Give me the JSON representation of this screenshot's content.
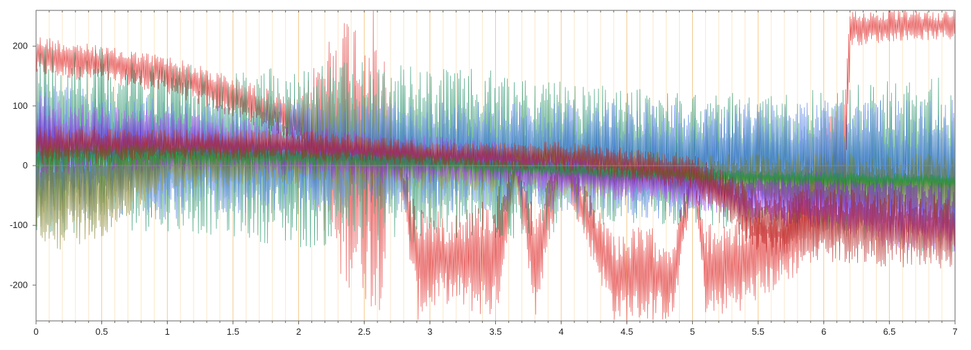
{
  "chart_data": {
    "type": "line",
    "title": "",
    "xlabel": "",
    "ylabel": "",
    "xlim": [
      0,
      7
    ],
    "ylim": [
      -260,
      260
    ],
    "x_ticks": [
      0,
      0.5,
      1,
      1.5,
      2,
      2.5,
      3,
      3.5,
      4,
      4.5,
      5,
      5.5,
      6,
      6.5,
      7
    ],
    "x_tick_labels": [
      "0",
      "0.5",
      "1",
      "1.5",
      "2",
      "2.5",
      "3",
      "3.5",
      "4",
      "4.5",
      "5",
      "5.5",
      "6",
      "6.5",
      "7"
    ],
    "y_ticks": [
      200,
      100,
      0,
      -100,
      -200
    ],
    "y_tick_labels": [
      "200",
      "100",
      "0",
      "-100",
      "-200"
    ],
    "grid": {
      "major_vertical": true,
      "minor_vertical_step": 0.1,
      "horizontal_zero_line": true,
      "major_color": "#f5c98a",
      "minor_color": "#fbe7c8"
    },
    "legend": "none",
    "background": "#ffffff",
    "series": [
      {
        "color": "#e03030",
        "envelope": [
          {
            "x": 0,
            "lo": 150,
            "hi": 220
          },
          {
            "x": 0.5,
            "lo": 140,
            "hi": 200
          },
          {
            "x": 1,
            "lo": 120,
            "hi": 185
          },
          {
            "x": 1.5,
            "lo": 80,
            "hi": 150
          },
          {
            "x": 2,
            "lo": 40,
            "hi": 110
          },
          {
            "x": 2.3,
            "lo": -200,
            "hi": 260
          },
          {
            "x": 2.45,
            "lo": -210,
            "hi": 260
          },
          {
            "x": 2.6,
            "lo": -260,
            "hi": 260
          },
          {
            "x": 2.75,
            "lo": -10,
            "hi": 40
          },
          {
            "x": 2.9,
            "lo": -260,
            "hi": -60
          },
          {
            "x": 3.1,
            "lo": -230,
            "hi": -80
          },
          {
            "x": 3.35,
            "lo": -250,
            "hi": -60
          },
          {
            "x": 3.5,
            "lo": -260,
            "hi": -40
          },
          {
            "x": 3.65,
            "lo": -30,
            "hi": 20
          },
          {
            "x": 3.8,
            "lo": -260,
            "hi": -80
          },
          {
            "x": 4.0,
            "lo": -20,
            "hi": 30
          },
          {
            "x": 4.4,
            "lo": -260,
            "hi": -110
          },
          {
            "x": 4.65,
            "lo": -260,
            "hi": -100
          },
          {
            "x": 4.85,
            "lo": -260,
            "hi": -120
          },
          {
            "x": 5.0,
            "lo": -30,
            "hi": 10
          },
          {
            "x": 5.1,
            "lo": -260,
            "hi": -100
          },
          {
            "x": 5.4,
            "lo": -240,
            "hi": -80
          },
          {
            "x": 5.7,
            "lo": -200,
            "hi": -60
          },
          {
            "x": 6.0,
            "lo": -150,
            "hi": 80
          },
          {
            "x": 6.15,
            "lo": -130,
            "hi": 100
          },
          {
            "x": 6.2,
            "lo": 200,
            "hi": 260
          },
          {
            "x": 6.6,
            "lo": 210,
            "hi": 260
          },
          {
            "x": 7,
            "lo": 210,
            "hi": 260
          }
        ]
      },
      {
        "color": "#138a5e",
        "envelope": [
          {
            "x": 0,
            "lo": -120,
            "hi": 210
          },
          {
            "x": 0.5,
            "lo": -110,
            "hi": 200
          },
          {
            "x": 1,
            "lo": -110,
            "hi": 180
          },
          {
            "x": 1.5,
            "lo": -120,
            "hi": 160
          },
          {
            "x": 2,
            "lo": -140,
            "hi": 170
          },
          {
            "x": 2.5,
            "lo": -130,
            "hi": 175
          },
          {
            "x": 3,
            "lo": -130,
            "hi": 165
          },
          {
            "x": 3.5,
            "lo": -130,
            "hi": 160
          },
          {
            "x": 4,
            "lo": -110,
            "hi": 140
          },
          {
            "x": 4.5,
            "lo": -100,
            "hi": 130
          },
          {
            "x": 5,
            "lo": -100,
            "hi": 125
          },
          {
            "x": 5.5,
            "lo": -110,
            "hi": 120
          },
          {
            "x": 6,
            "lo": -120,
            "hi": 130
          },
          {
            "x": 6.5,
            "lo": -140,
            "hi": 145
          },
          {
            "x": 7,
            "lo": -150,
            "hi": 150
          }
        ]
      },
      {
        "color": "#3a6ee0",
        "envelope": [
          {
            "x": 0,
            "lo": -100,
            "hi": 140
          },
          {
            "x": 0.5,
            "lo": -90,
            "hi": 125
          },
          {
            "x": 1,
            "lo": -90,
            "hi": 110
          },
          {
            "x": 1.5,
            "lo": -80,
            "hi": 110
          },
          {
            "x": 2,
            "lo": -80,
            "hi": 105
          },
          {
            "x": 2.5,
            "lo": -70,
            "hi": 110
          },
          {
            "x": 3,
            "lo": -80,
            "hi": 110
          },
          {
            "x": 3.5,
            "lo": -80,
            "hi": 110
          },
          {
            "x": 4,
            "lo": -80,
            "hi": 110
          },
          {
            "x": 4.5,
            "lo": -90,
            "hi": 110
          },
          {
            "x": 5,
            "lo": -90,
            "hi": 105
          },
          {
            "x": 5.5,
            "lo": -100,
            "hi": 105
          },
          {
            "x": 6,
            "lo": -110,
            "hi": 110
          },
          {
            "x": 6.5,
            "lo": -120,
            "hi": 110
          },
          {
            "x": 7,
            "lo": -130,
            "hi": 110
          }
        ]
      },
      {
        "color": "#7a7a1e",
        "envelope": [
          {
            "x": 0,
            "lo": -155,
            "hi": 60
          },
          {
            "x": 0.5,
            "lo": -120,
            "hi": 50
          },
          {
            "x": 1,
            "lo": -40,
            "hi": 60
          },
          {
            "x": 2,
            "lo": -30,
            "hi": 50
          },
          {
            "x": 3,
            "lo": -40,
            "hi": 40
          },
          {
            "x": 4,
            "lo": -50,
            "hi": 30
          },
          {
            "x": 5,
            "lo": -60,
            "hi": 20
          },
          {
            "x": 6,
            "lo": -90,
            "hi": 20
          },
          {
            "x": 7,
            "lo": -110,
            "hi": 20
          }
        ]
      },
      {
        "color": "#8a2be2",
        "envelope": [
          {
            "x": 0,
            "lo": -20,
            "hi": 120
          },
          {
            "x": 0.5,
            "lo": -10,
            "hi": 100
          },
          {
            "x": 1,
            "lo": -10,
            "hi": 90
          },
          {
            "x": 1.5,
            "lo": -10,
            "hi": 80
          },
          {
            "x": 2,
            "lo": -20,
            "hi": 70
          },
          {
            "x": 2.5,
            "lo": -30,
            "hi": 60
          },
          {
            "x": 3,
            "lo": -30,
            "hi": 50
          },
          {
            "x": 3.5,
            "lo": -30,
            "hi": 40
          },
          {
            "x": 4,
            "lo": -50,
            "hi": 20
          },
          {
            "x": 4.5,
            "lo": -60,
            "hi": 10
          },
          {
            "x": 5,
            "lo": -70,
            "hi": 0
          },
          {
            "x": 5.5,
            "lo": -100,
            "hi": -10
          },
          {
            "x": 6,
            "lo": -110,
            "hi": -10
          },
          {
            "x": 6.5,
            "lo": -140,
            "hi": -20
          },
          {
            "x": 7,
            "lo": -150,
            "hi": -30
          }
        ]
      },
      {
        "color": "#1a9a2a",
        "envelope": [
          {
            "x": 0,
            "lo": -10,
            "hi": 40
          },
          {
            "x": 1,
            "lo": 0,
            "hi": 35
          },
          {
            "x": 2,
            "lo": 0,
            "hi": 30
          },
          {
            "x": 3,
            "lo": -10,
            "hi": 20
          },
          {
            "x": 4,
            "lo": -20,
            "hi": 5
          },
          {
            "x": 5,
            "lo": -30,
            "hi": -5
          },
          {
            "x": 6,
            "lo": -35,
            "hi": -10
          },
          {
            "x": 7,
            "lo": -40,
            "hi": -15
          }
        ]
      },
      {
        "color": "#b22222",
        "envelope": [
          {
            "x": 0,
            "lo": 0,
            "hi": 70
          },
          {
            "x": 1,
            "lo": 10,
            "hi": 60
          },
          {
            "x": 2,
            "lo": 10,
            "hi": 60
          },
          {
            "x": 3,
            "lo": 0,
            "hi": 40
          },
          {
            "x": 4,
            "lo": -10,
            "hi": 40
          },
          {
            "x": 5,
            "lo": -40,
            "hi": 20
          },
          {
            "x": 5.5,
            "lo": -150,
            "hi": -40
          },
          {
            "x": 6,
            "lo": -160,
            "hi": -40
          },
          {
            "x": 6.5,
            "lo": -170,
            "hi": -40
          },
          {
            "x": 7,
            "lo": -175,
            "hi": -50
          }
        ]
      }
    ]
  }
}
